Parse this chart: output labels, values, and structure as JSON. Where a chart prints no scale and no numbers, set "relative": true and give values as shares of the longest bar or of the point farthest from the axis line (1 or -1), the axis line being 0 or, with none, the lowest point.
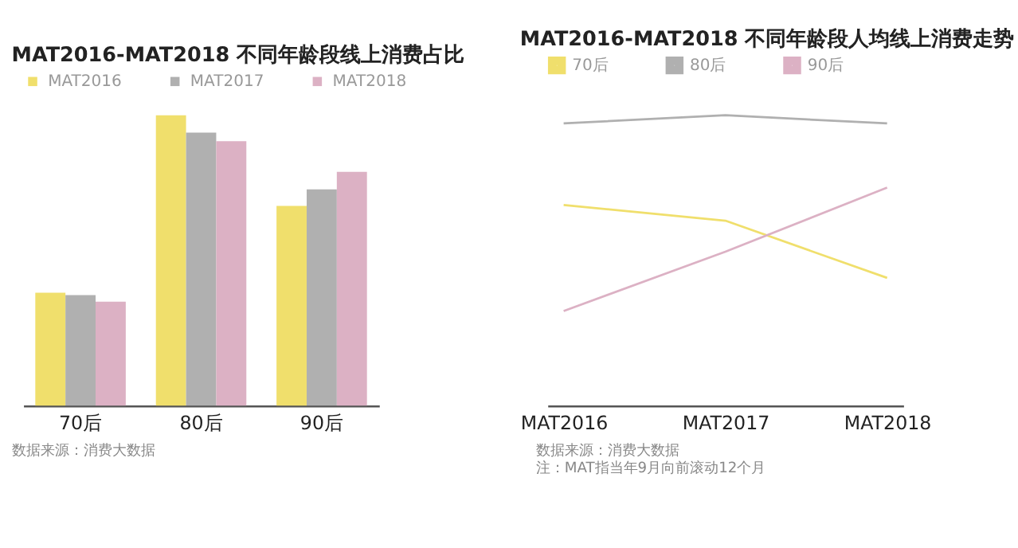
{
  "chart_data": [
    {
      "type": "bar",
      "title": "MAT2016-MAT2018 不同年龄段线上消费占比",
      "categories": [
        "70后",
        "80后",
        "90后"
      ],
      "relative": true,
      "legend": "top left",
      "grid": false,
      "series": [
        {
          "name": "MAT2016",
          "color": "#f0df6c",
          "values": [
            0.389,
            1,
            0.688
          ]
        },
        {
          "name": "MAT2017",
          "color": "#b0b0b0",
          "values": [
            0.381,
            0.94,
            0.745
          ]
        },
        {
          "name": "MAT2018",
          "color": "#dcb1c4",
          "values": [
            0.358,
            0.911,
            0.805
          ]
        }
      ],
      "annotations": [
        "数据来源：消费大数据"
      ]
    },
    {
      "type": "line",
      "title": "MAT2016-MAT2018 不同年龄段人均线上消费走势",
      "categories": [
        "MAT2016",
        "MAT2017",
        "MAT2018"
      ],
      "relative": true,
      "legend": "top left",
      "grid": false,
      "marker": "none",
      "line_style": "solid",
      "series": [
        {
          "name": "70后",
          "color": "#f0df6c",
          "values": [
            0.691,
            0.637,
            0.44
          ]
        },
        {
          "name": "80后",
          "color": "#b0b0b0",
          "values": [
            0.972,
            1,
            0.972
          ]
        },
        {
          "name": "90后",
          "color": "#dcb1c4",
          "values": [
            0.326,
            0.53,
            0.751
          ]
        }
      ],
      "annotations": [
        "数据来源：消费大数据",
        "注：MAT指当年9月向前滚动12个月"
      ]
    }
  ]
}
